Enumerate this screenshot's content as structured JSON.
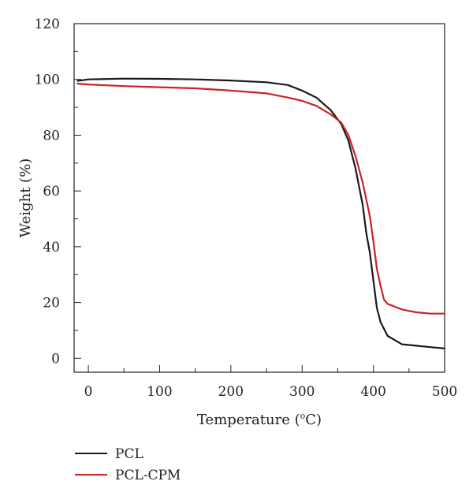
{
  "chart_data": {
    "type": "line",
    "xlabel": "Temperature (",
    "xlabel_sup": "o",
    "xlabel_unit": "C)",
    "ylabel": "Weight (%)",
    "xlim": [
      -20,
      500
    ],
    "ylim": [
      -5,
      120
    ],
    "xticks": [
      0,
      100,
      200,
      300,
      400,
      500
    ],
    "yticks": [
      0,
      20,
      40,
      60,
      80,
      100,
      120
    ],
    "grid": false,
    "legend_position": "bottom-left, below plot",
    "series": [
      {
        "name": "PCL",
        "color": "#1a1a1a",
        "x": [
          -15,
          0,
          50,
          100,
          150,
          200,
          250,
          280,
          300,
          320,
          340,
          355,
          365,
          375,
          385,
          390,
          395,
          400,
          405,
          410,
          420,
          440,
          460,
          480,
          500
        ],
        "y": [
          99.5,
          100,
          100.3,
          100.2,
          100,
          99.6,
          99,
          98,
          96,
          93.5,
          89,
          84,
          78,
          68,
          55,
          45,
          38,
          28,
          18,
          13,
          8,
          5,
          4.5,
          4,
          3.5
        ]
      },
      {
        "name": "PCL-CPM",
        "color": "#cc2222",
        "x": [
          -15,
          0,
          50,
          100,
          150,
          200,
          250,
          280,
          300,
          320,
          340,
          355,
          365,
          375,
          385,
          395,
          400,
          405,
          410,
          415,
          420,
          440,
          460,
          480,
          500
        ],
        "y": [
          98.5,
          98.2,
          97.6,
          97.2,
          96.8,
          96,
          95,
          93.5,
          92.3,
          90.5,
          87.5,
          84.5,
          80,
          72.5,
          63,
          51,
          42,
          32,
          26,
          21,
          19.5,
          17.5,
          16.5,
          16,
          16
        ]
      }
    ]
  }
}
